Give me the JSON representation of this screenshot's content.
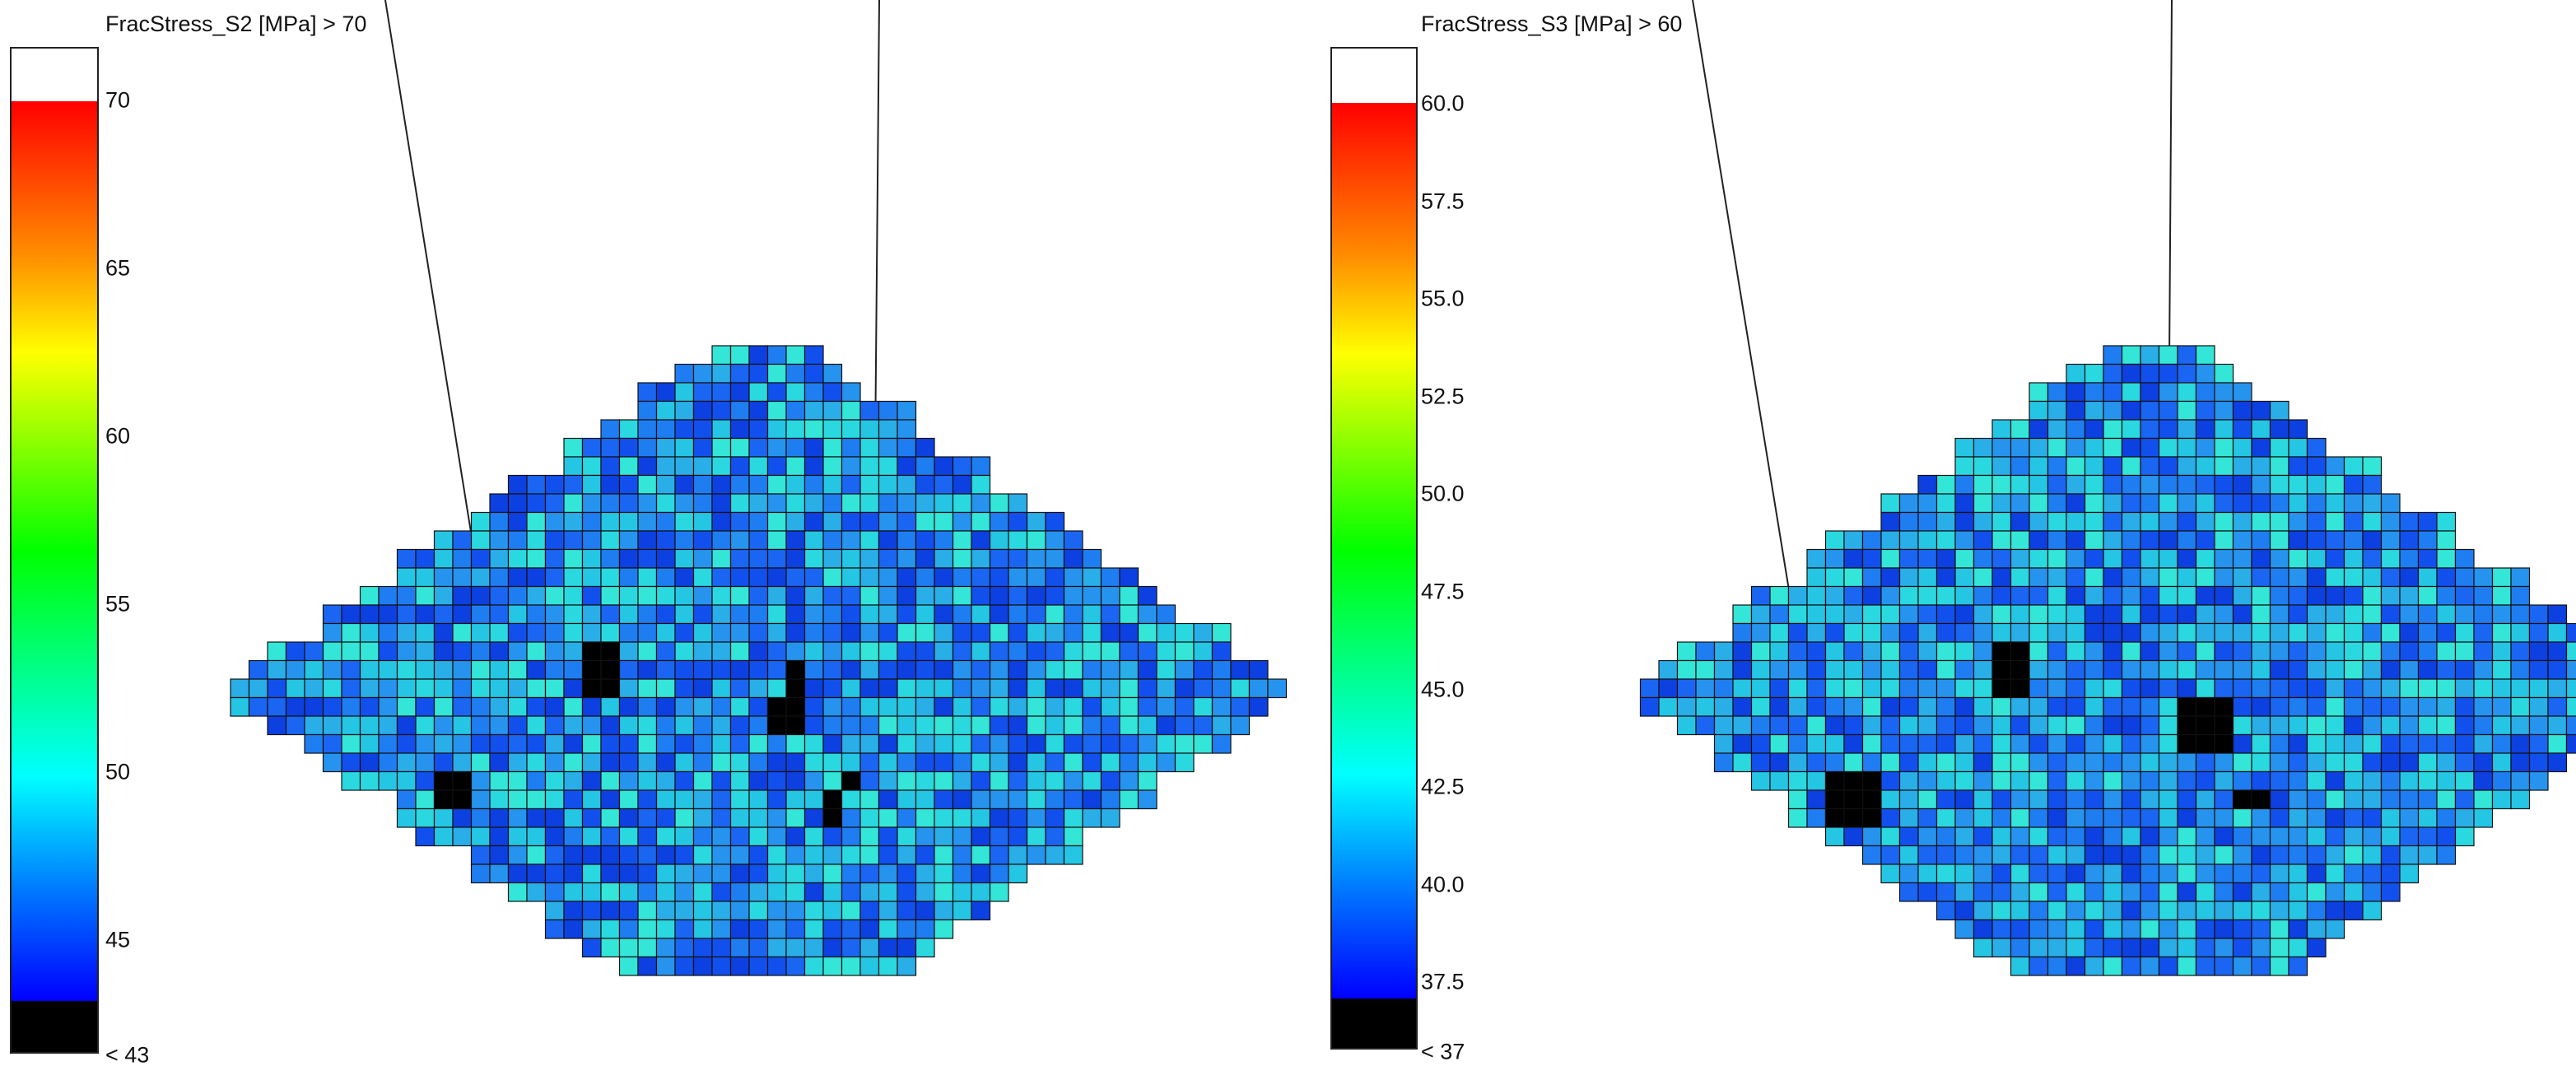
{
  "left": {
    "title": "FracStress_S2 [MPa] > 70",
    "ticks": [
      "70",
      "65",
      "60",
      "55",
      "50",
      "45"
    ],
    "under_label": "< 43",
    "colors": {
      "over": "#ffffff",
      "under": "#000000",
      "base_cell": "#1a6bf0",
      "cell_border": "#111111"
    }
  },
  "right": {
    "title": "FracStress_S3 [MPa] > 60",
    "ticks": [
      "60.0",
      "57.5",
      "55.0",
      "52.5",
      "50.0",
      "47.5",
      "45.0",
      "42.5",
      "40.0",
      "37.5"
    ],
    "under_label": "< 37",
    "colors": {
      "over": "#ffffff",
      "under": "#000000",
      "base_cell": "#1a6bf0",
      "cell_border": "#111111"
    }
  }
}
